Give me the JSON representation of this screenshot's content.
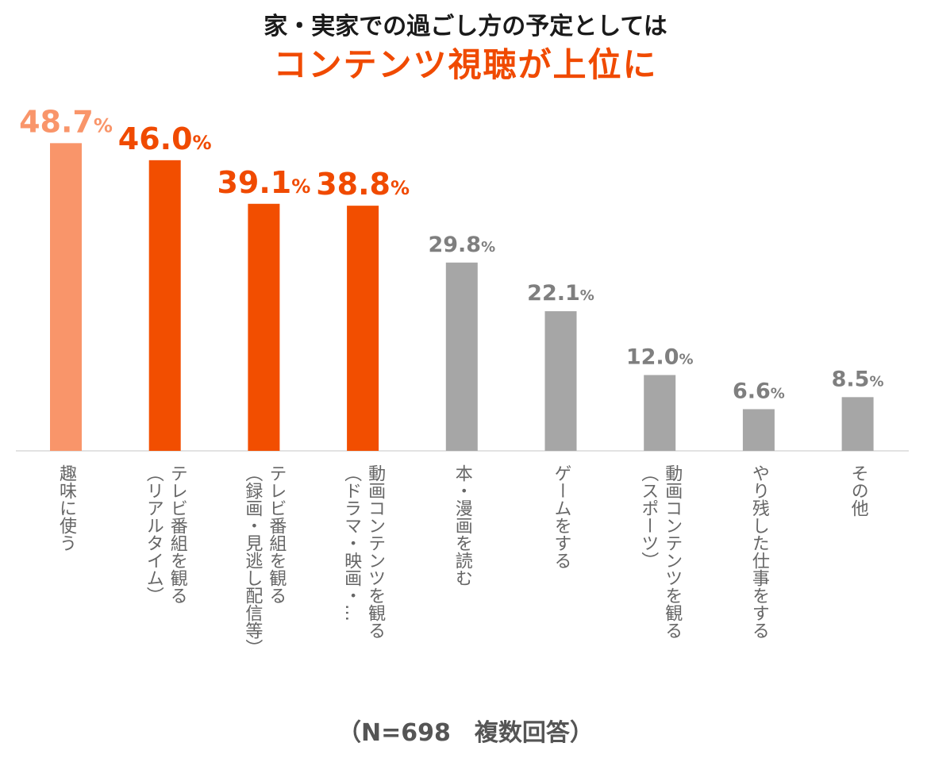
{
  "chart_data": {
    "type": "bar",
    "title": "家・実家での過ごし方の予定としては",
    "subtitle": "コンテンツ視聴が上位に",
    "categories": [
      [
        "趣味に使う"
      ],
      [
        "テレビ番組を観る",
        "（リアルタイム）"
      ],
      [
        "テレビ番組を観る",
        "（録画・見逃し配信等）"
      ],
      [
        "動画コンテンツを観る",
        "（ドラマ・映画・…"
      ],
      [
        "本・漫画を読む"
      ],
      [
        "ゲームをする"
      ],
      [
        "動画コンテンツを観る",
        "（スポーツ）"
      ],
      [
        "やり残した仕事をする"
      ],
      [
        "その他"
      ]
    ],
    "values": [
      48.7,
      46.0,
      39.1,
      38.8,
      29.8,
      22.1,
      12.0,
      6.6,
      8.5
    ],
    "value_labels": [
      "48.7",
      "46.0",
      "39.1",
      "38.8",
      "29.8",
      "22.1",
      "12.0",
      "6.6",
      "8.5"
    ],
    "unit": "%",
    "colors": [
      "#f9956a",
      "#f24e00",
      "#f24e00",
      "#f24e00",
      "#a6a6a6",
      "#a6a6a6",
      "#a6a6a6",
      "#a6a6a6",
      "#a6a6a6"
    ],
    "label_colors": [
      "#f9956a",
      "#f04a00",
      "#f04a00",
      "#f04a00",
      "#7f7f7f",
      "#7f7f7f",
      "#7f7f7f",
      "#7f7f7f",
      "#7f7f7f"
    ],
    "highlight": [
      true,
      true,
      true,
      true,
      false,
      false,
      false,
      false,
      false
    ],
    "ylim": [
      0,
      55
    ],
    "grid": false,
    "note": "（N=698　複数回答）"
  }
}
